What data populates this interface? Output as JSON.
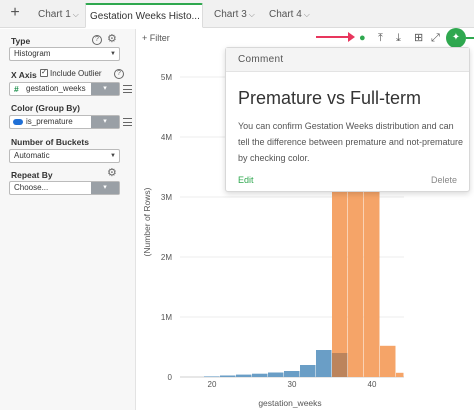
{
  "tabs": {
    "add": "+",
    "items": [
      {
        "label": "Chart 1",
        "chevron": "⌵"
      },
      {
        "label": "Gestation Weeks Histo...",
        "chevron": "⌵"
      },
      {
        "label": "Chart 3",
        "chevron": "⌵"
      },
      {
        "label": "Chart 4",
        "chevron": "⌵"
      }
    ],
    "accent": "#2fa84f"
  },
  "panel": {
    "type": {
      "label": "Type",
      "value": "Histogram",
      "help": "?"
    },
    "x_axis": {
      "label": "X Axis",
      "include_outlier": "Include Outlier",
      "include_outlier_checked": true,
      "column": "gestation_weeks",
      "column_type_icon": "#"
    },
    "color": {
      "label": "Color (Group By)",
      "column": "is_premature",
      "toggle_color": "#1f6fd6"
    },
    "buckets": {
      "label": "Number of Buckets",
      "value": "Automatic"
    },
    "repeat": {
      "label": "Repeat By",
      "value": "Choose..."
    }
  },
  "toolbar": {
    "filter": "+ Filter",
    "icons": [
      "comment-icon",
      "upload-icon",
      "download-icon",
      "grid-icon",
      "expand-icon",
      "pin-icon"
    ]
  },
  "chart_data": {
    "type": "bar",
    "xlabel": "gestation_weeks",
    "ylabel": "(Number of Rows)",
    "x_ticks": [
      "20",
      "30",
      "40"
    ],
    "y_ticks": [
      "0",
      "1M",
      "2M",
      "3M",
      "4M",
      "5M"
    ],
    "ylim": [
      0,
      5000000
    ],
    "xlim": [
      16,
      44
    ],
    "series": [
      {
        "color": "#6a9ec6",
        "bins": [
          {
            "x0": 17,
            "x1": 19,
            "y": 0
          },
          {
            "x0": 19,
            "x1": 21,
            "y": 10000
          },
          {
            "x0": 21,
            "x1": 23,
            "y": 25000
          },
          {
            "x0": 23,
            "x1": 25,
            "y": 40000
          },
          {
            "x0": 25,
            "x1": 27,
            "y": 55000
          },
          {
            "x0": 27,
            "x1": 29,
            "y": 75000
          },
          {
            "x0": 29,
            "x1": 31,
            "y": 100000
          },
          {
            "x0": 31,
            "x1": 33,
            "y": 200000
          },
          {
            "x0": 33,
            "x1": 35,
            "y": 450000
          },
          {
            "x0": 35,
            "x1": 37,
            "y": 400000
          }
        ]
      },
      {
        "color": "#f5a468",
        "bins": [
          {
            "x0": 35,
            "x1": 37,
            "y": 4000000
          },
          {
            "x0": 37,
            "x1": 39,
            "y": 4700000
          },
          {
            "x0": 39,
            "x1": 41,
            "y": 3200000
          },
          {
            "x0": 41,
            "x1": 43,
            "y": 520000
          },
          {
            "x0": 43,
            "x1": 45,
            "y": 70000
          }
        ]
      }
    ],
    "overlap_color": "#b27f5a"
  },
  "comment": {
    "header": "Comment",
    "title": "Premature vs Full-term",
    "body": "You can confirm Gestation Weeks distribution and can tell the difference between premature and not-premature by checking color.",
    "edit": "Edit",
    "delete": "Delete"
  },
  "annotation_arrow_color": "#e8365d"
}
